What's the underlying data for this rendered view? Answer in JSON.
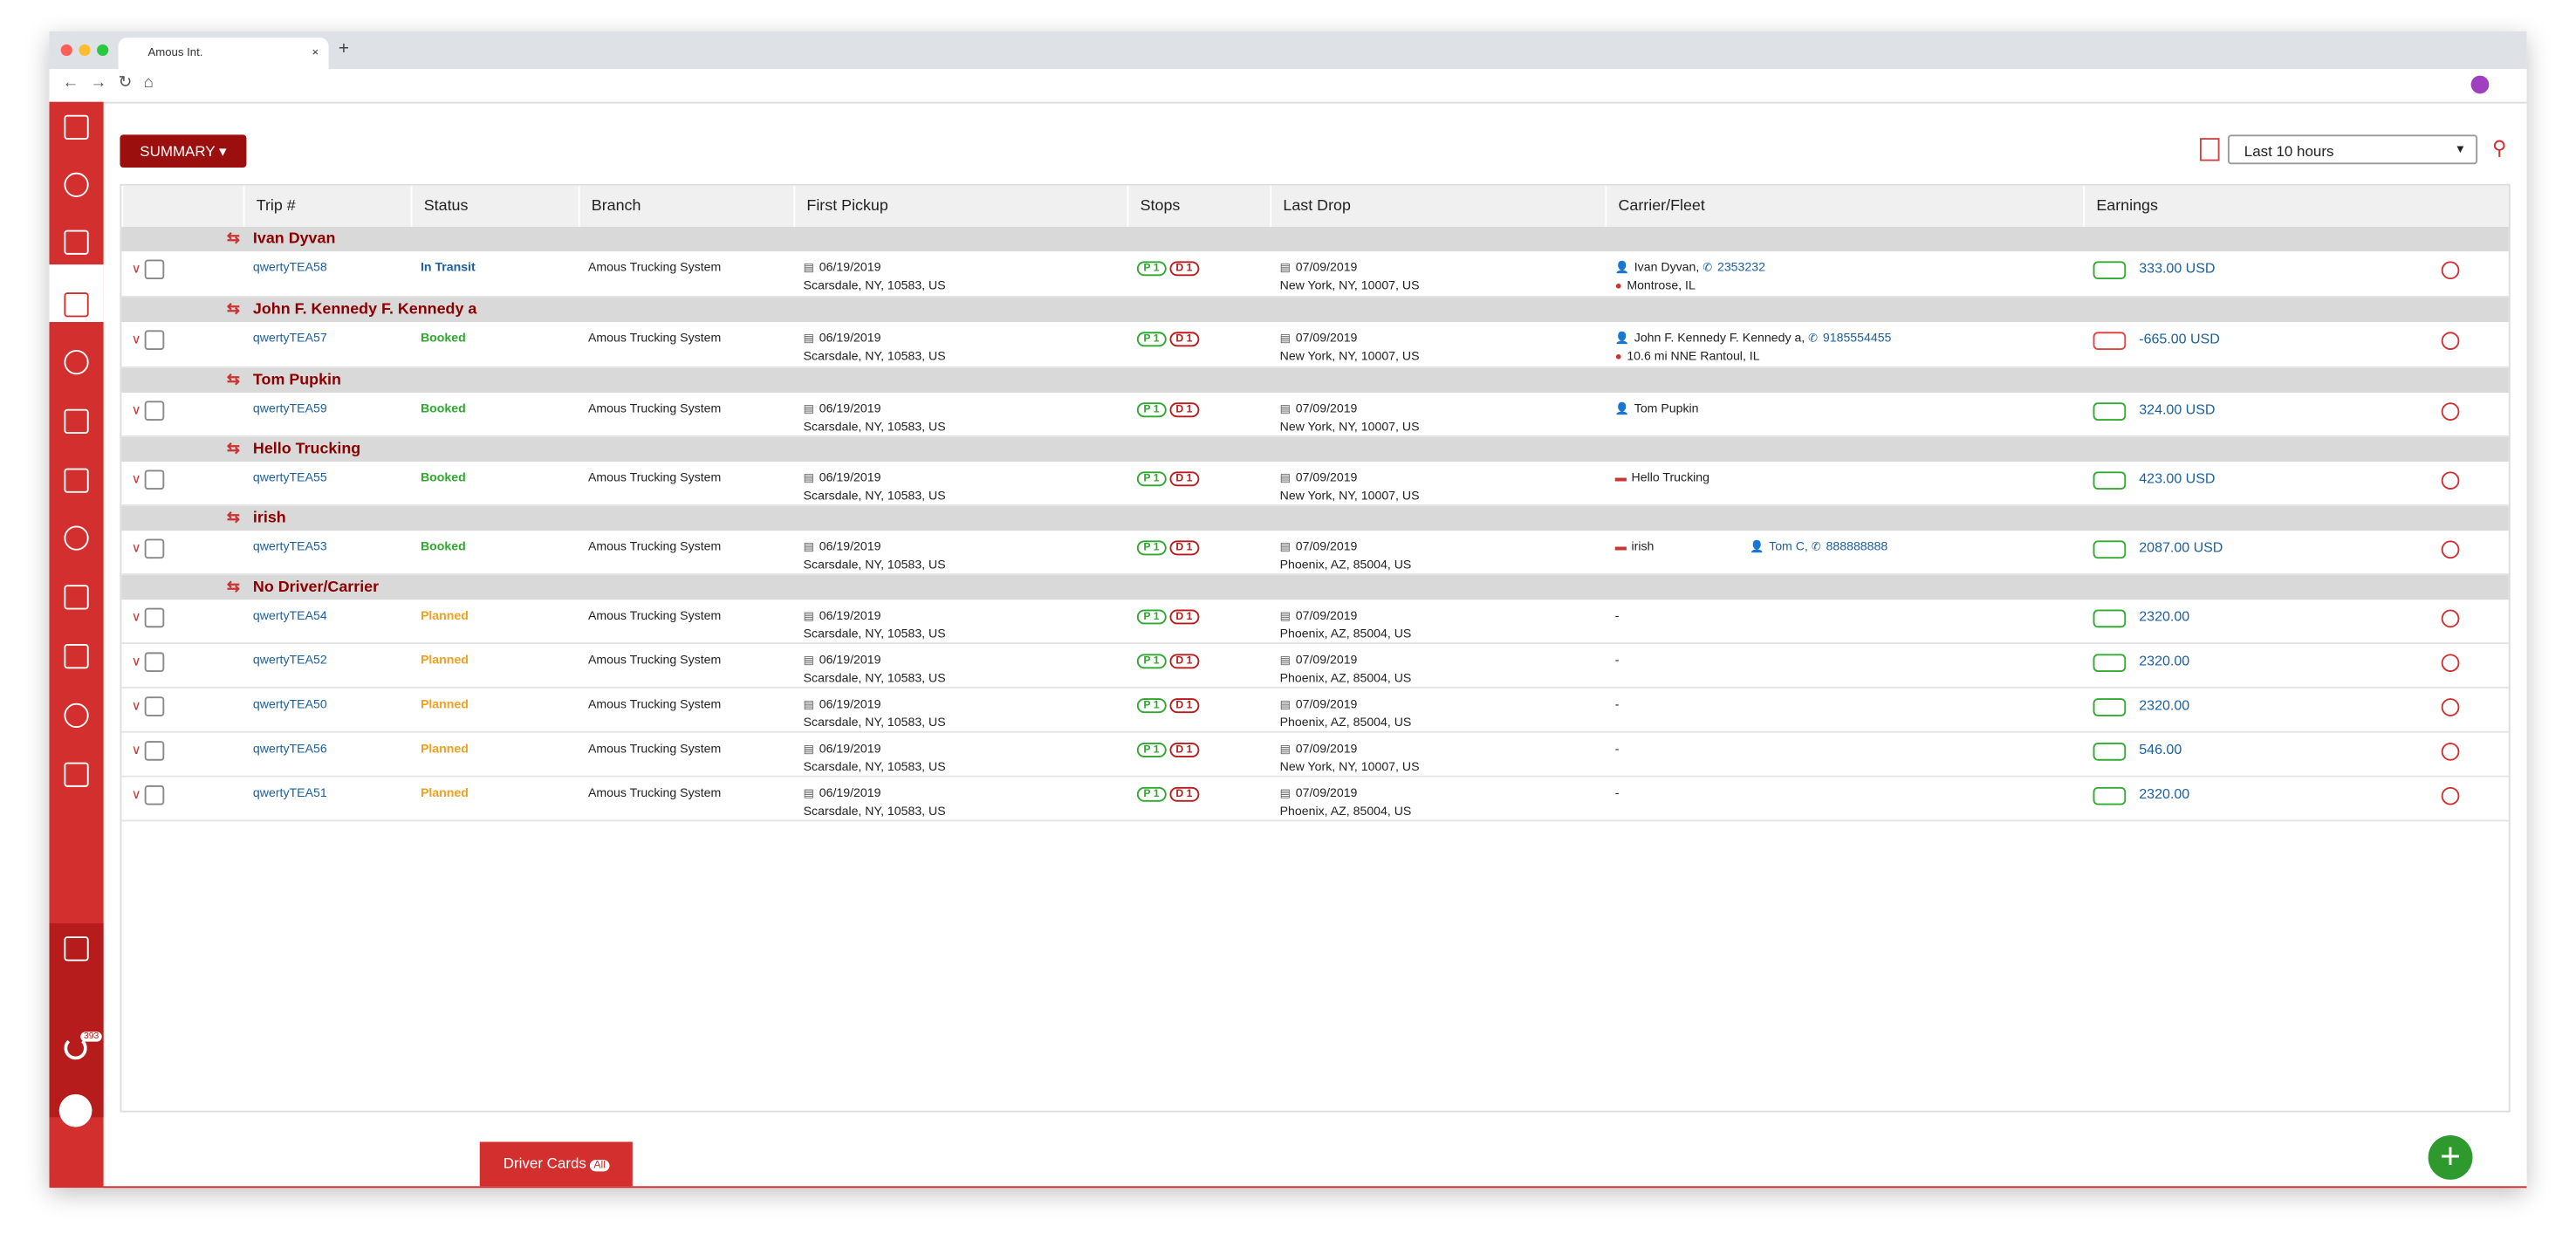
{
  "browser": {
    "tab_title": "Amous Int."
  },
  "toolbar": {
    "summary_button": "SUMMARY",
    "time_filter": "Last 10 hours"
  },
  "notifications": {
    "count": "393"
  },
  "table": {
    "headers": [
      "Trip #",
      "Status",
      "Branch",
      "First Pickup",
      "Stops",
      "Last Drop",
      "Carrier/Fleet",
      "Earnings"
    ],
    "groups": [
      {
        "name": "Ivan Dyvan",
        "rows": [
          {
            "trip": "qwertyTEA58",
            "status": "In Transit",
            "status_color": "#1a5fa0",
            "branch": "Amous Trucking System",
            "pickup_date": "06/19/2019",
            "pickup_place": "Scarsdale, NY, 10583, US",
            "stops": [
              "P 1",
              "D 1"
            ],
            "drop_date": "07/09/2019",
            "drop_place": "New York, NY, 10007, US",
            "carrier": {
              "person": "Ivan Dyvan,",
              "phone": "2353232",
              "location": "Montrose, IL"
            },
            "earnings": "333.00 USD"
          }
        ]
      },
      {
        "name": "John F. Kennedy F. Kennedy a",
        "rows": [
          {
            "trip": "qwertyTEA57",
            "status": "Booked",
            "status_color": "#2fa82f",
            "branch": "Amous Trucking System",
            "pickup_date": "06/19/2019",
            "pickup_place": "Scarsdale, NY, 10583, US",
            "stops": [
              "P 1",
              "D 1"
            ],
            "drop_date": "07/09/2019",
            "drop_place": "New York, NY, 10007, US",
            "carrier": {
              "person": "John F. Kennedy F. Kennedy a,",
              "phone": "9185554455",
              "location": "10.6 mi NNE Rantoul, IL"
            },
            "earnings": "-665.00 USD"
          }
        ]
      },
      {
        "name": "Tom Pupkin",
        "rows": [
          {
            "trip": "qwertyTEA59",
            "status": "Booked",
            "status_color": "#2fa82f",
            "branch": "Amous Trucking System",
            "pickup_date": "06/19/2019",
            "pickup_place": "Scarsdale, NY, 10583, US",
            "stops": [
              "P 1",
              "D 1"
            ],
            "drop_date": "07/09/2019",
            "drop_place": "New York, NY, 10007, US",
            "carrier": {
              "person": "Tom Pupkin"
            },
            "earnings": "324.00 USD"
          }
        ]
      },
      {
        "name": "Hello Trucking",
        "rows": [
          {
            "trip": "qwertyTEA55",
            "status": "Booked",
            "status_color": "#2fa82f",
            "branch": "Amous Trucking System",
            "pickup_date": "06/19/2019",
            "pickup_place": "Scarsdale, NY, 10583, US",
            "stops": [
              "P 1",
              "D 1"
            ],
            "drop_date": "07/09/2019",
            "drop_place": "New York, NY, 10007, US",
            "carrier": {
              "fleet": "Hello Trucking"
            },
            "earnings": "423.00 USD"
          }
        ]
      },
      {
        "name": "irish",
        "rows": [
          {
            "trip": "qwertyTEA53",
            "status": "Booked",
            "status_color": "#2fa82f",
            "branch": "Amous Trucking System",
            "pickup_date": "06/19/2019",
            "pickup_place": "Scarsdale, NY, 10583, US",
            "stops": [
              "P 1",
              "D 1"
            ],
            "drop_date": "07/09/2019",
            "drop_place": "Phoenix, AZ, 85004, US",
            "carrier": {
              "fleet": "irish",
              "driver": "Tom C,",
              "phone": "888888888"
            },
            "earnings": "2087.00 USD"
          }
        ]
      },
      {
        "name": "No Driver/Carrier",
        "rows": [
          {
            "trip": "qwertyTEA54",
            "status": "Planned",
            "status_color": "#f0a020",
            "branch": "Amous Trucking System",
            "pickup_date": "06/19/2019",
            "pickup_place": "Scarsdale, NY, 10583, US",
            "stops": [
              "P 1",
              "D 1"
            ],
            "drop_date": "07/09/2019",
            "drop_place": "Phoenix, AZ, 85004, US",
            "carrier": {
              "text": "-"
            },
            "earnings": "2320.00"
          },
          {
            "trip": "qwertyTEA52",
            "status": "Planned",
            "status_color": "#f0a020",
            "branch": "Amous Trucking System",
            "pickup_date": "06/19/2019",
            "pickup_place": "Scarsdale, NY, 10583, US",
            "stops": [
              "P 1",
              "D 1"
            ],
            "drop_date": "07/09/2019",
            "drop_place": "Phoenix, AZ, 85004, US",
            "carrier": {
              "text": "-"
            },
            "earnings": "2320.00"
          },
          {
            "trip": "qwertyTEA50",
            "status": "Planned",
            "status_color": "#f0a020",
            "branch": "Amous Trucking System",
            "pickup_date": "06/19/2019",
            "pickup_place": "Scarsdale, NY, 10583, US",
            "stops": [
              "P 1",
              "D 1"
            ],
            "drop_date": "07/09/2019",
            "drop_place": "Phoenix, AZ, 85004, US",
            "carrier": {
              "text": "-"
            },
            "earnings": "2320.00"
          },
          {
            "trip": "qwertyTEA56",
            "status": "Planned",
            "status_color": "#f0a020",
            "branch": "Amous Trucking System",
            "pickup_date": "06/19/2019",
            "pickup_place": "Scarsdale, NY, 10583, US",
            "stops": [
              "P 1",
              "D 1"
            ],
            "drop_date": "07/09/2019",
            "drop_place": "New York, NY, 10007, US",
            "carrier": {
              "text": "-"
            },
            "earnings": "546.00"
          },
          {
            "trip": "qwertyTEA51",
            "status": "Planned",
            "status_color": "#f0a020",
            "branch": "Amous Trucking System",
            "pickup_date": "06/19/2019",
            "pickup_place": "Scarsdale, NY, 10583, US",
            "stops": [
              "P 1",
              "D 1"
            ],
            "drop_date": "07/09/2019",
            "drop_place": "Phoenix, AZ, 85004, US",
            "carrier": {
              "text": "-"
            },
            "earnings": "2320.00"
          }
        ]
      }
    ]
  },
  "footer": {
    "driver_cards": "Driver Cards",
    "badge": "All"
  }
}
